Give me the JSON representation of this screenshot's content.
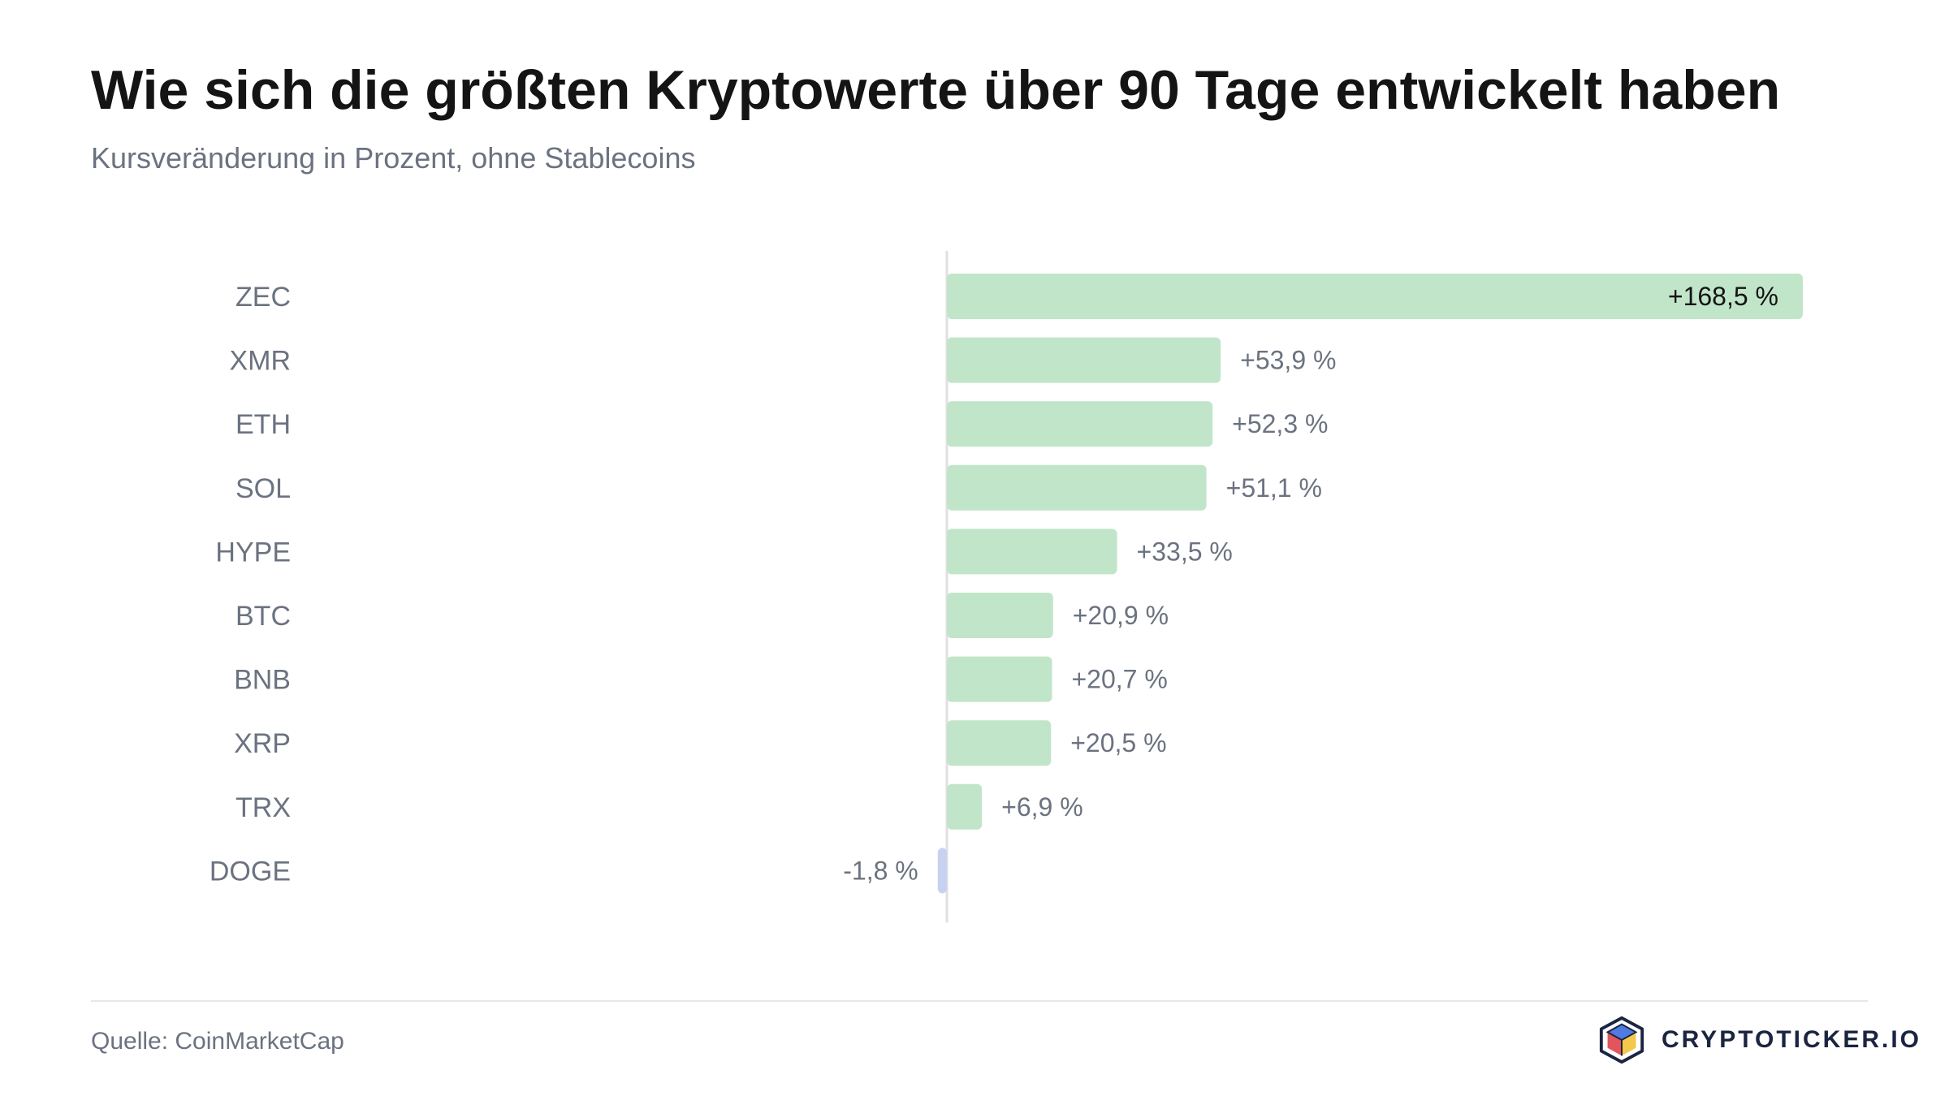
{
  "header": {
    "title": "Wie sich die größten Kryptowerte über 90 Tage entwickelt haben",
    "subtitle": "Kursveränderung in Prozent, ohne Stablecoins"
  },
  "chart_data": {
    "type": "bar",
    "orientation": "horizontal",
    "title": "Wie sich die größten Kryptowerte über 90 Tage entwickelt haben",
    "subtitle": "Kursveränderung in Prozent, ohne Stablecoins",
    "categories": [
      "ZEC",
      "XMR",
      "ETH",
      "SOL",
      "HYPE",
      "BTC",
      "BNB",
      "XRP",
      "TRX",
      "DOGE"
    ],
    "values": [
      168.5,
      53.9,
      52.3,
      51.1,
      33.5,
      20.9,
      20.7,
      20.5,
      6.9,
      -1.8
    ],
    "value_labels": [
      "+168,5 %",
      "+53,9 %",
      "+52,3 %",
      "+51,1 %",
      "+33,5 %",
      "+20,9 %",
      "+20,7 %",
      "+20,5 %",
      "+6,9 %",
      "-1,8 %"
    ],
    "xlim": [
      -168.5,
      168.5
    ],
    "unit": "%",
    "colors": {
      "positive": "#c1e5c8",
      "negative": "#c7d2f0",
      "zero_line": "#e0e0e0",
      "category_label": "#6b7280",
      "value_label": "#6b7280",
      "value_label_inside": "#141414"
    },
    "grid": false,
    "legend": "none"
  },
  "footer": {
    "source": "Quelle: CoinMarketCap",
    "brand": "CRYPTOTICKER.IO",
    "brand_icon": "cube-logo-icon"
  }
}
